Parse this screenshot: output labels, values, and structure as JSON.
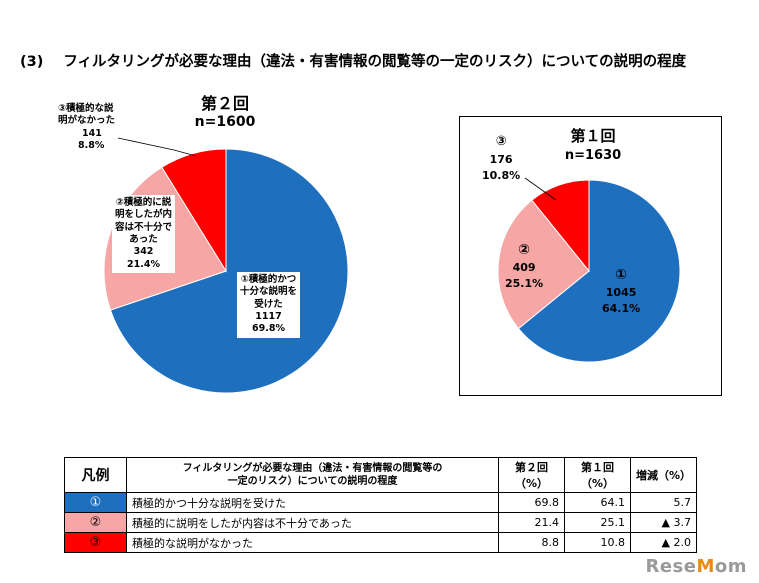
{
  "heading": {
    "number": "(3)",
    "text": "フィルタリングが必要な理由（違法・有害情報の閲覧等の一定のリスク）についての説明の程度"
  },
  "colors": {
    "c1": "#1f6fbf",
    "c2": "#f7a6a6",
    "c3": "#ff0000"
  },
  "chart_data": [
    {
      "type": "pie",
      "title": "第２回",
      "n_label": "n=1600",
      "total": 1600,
      "categories": [
        "①積極的かつ十分な説明を受けた",
        "②積極的に説明をしたが内容は不十分であった",
        "③積極的な説明がなかった"
      ],
      "values": [
        1117,
        342,
        141
      ],
      "percents": [
        69.8,
        21.4,
        8.8
      ],
      "labels": [
        {
          "lines": [
            "①積極的かつ",
            "十分な説明を",
            "受けた",
            "1117",
            "69.8%"
          ]
        },
        {
          "lines": [
            "②積極的に説",
            "明をしたが内",
            "容は不十分で",
            "あった",
            "342",
            "21.4%"
          ]
        },
        {
          "lines": [
            "③積極的な説",
            "明がなかった",
            "141",
            "8.8%"
          ]
        }
      ]
    },
    {
      "type": "pie",
      "title": "第１回",
      "n_label": "n=1630",
      "total": 1630,
      "values": [
        1045,
        409,
        176
      ],
      "percents": [
        64.1,
        25.1,
        10.8
      ],
      "labels": [
        {
          "lines": [
            "①",
            "1045",
            "64.1%"
          ]
        },
        {
          "lines": [
            "②",
            "409",
            "25.1%"
          ]
        },
        {
          "lines": [
            "③",
            "176",
            "10.8%"
          ]
        }
      ]
    }
  ],
  "table": {
    "headers": {
      "legend": "凡例",
      "title_line1": "フィルタリングが必要な理由（違法・有害情報の閲覧等の",
      "title_line2": "一定のリスク）についての説明の程度",
      "round2": "第２回（%）",
      "round1": "第１回（%）",
      "change": "増減（%）"
    },
    "rows": [
      {
        "symbol": "①",
        "label": "積極的かつ十分な説明を受けた",
        "round2": "69.8",
        "round1": "64.1",
        "change": "5.7"
      },
      {
        "symbol": "②",
        "label": "積極的に説明をしたが内容は不十分であった",
        "round2": "21.4",
        "round1": "25.1",
        "change": "▲ 3.7"
      },
      {
        "symbol": "③",
        "label": "積極的な説明がなかった",
        "round2": "8.8",
        "round1": "10.8",
        "change": "▲ 2.0"
      }
    ]
  },
  "watermark": {
    "part1": "Rese",
    "dot": "M",
    "part2": "om"
  }
}
